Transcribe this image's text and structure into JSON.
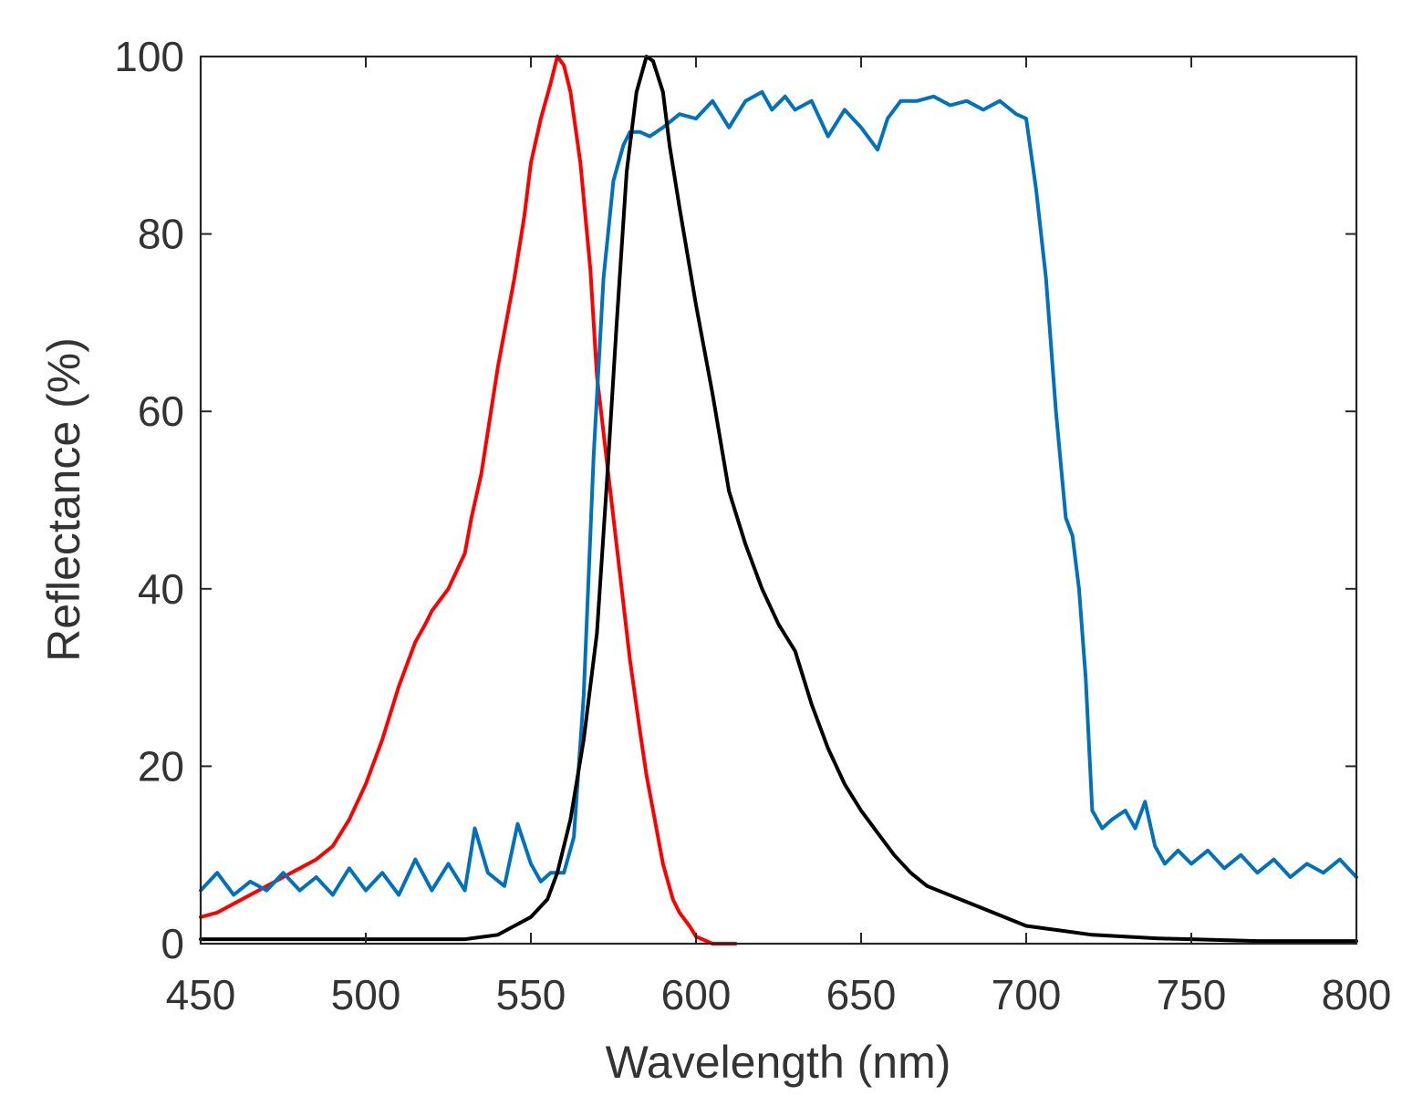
{
  "chart_data": {
    "type": "line",
    "title": "",
    "xlabel": "Wavelength (nm)",
    "ylabel": "Reflectance (%)",
    "xlim": [
      450,
      800
    ],
    "ylim": [
      0,
      100
    ],
    "xticks": [
      450,
      500,
      550,
      600,
      650,
      700,
      750,
      800
    ],
    "yticks": [
      0,
      20,
      40,
      60,
      80,
      100
    ],
    "grid": false,
    "legend": "none",
    "series": [
      {
        "color": "#ff0000",
        "x": [
          450,
          455,
          460,
          465,
          470,
          475,
          480,
          485,
          490,
          495,
          500,
          505,
          510,
          512,
          515,
          518,
          520,
          525,
          530,
          532,
          535,
          540,
          545,
          548,
          550,
          553,
          556,
          558,
          560,
          562,
          565,
          568,
          570,
          575,
          580,
          583,
          585,
          588,
          590,
          593,
          595,
          598,
          600,
          605,
          610,
          612
        ],
        "values": [
          3,
          3.5,
          4.5,
          5.5,
          6.5,
          7.5,
          8.5,
          9.5,
          11,
          14,
          18,
          23,
          29,
          31,
          34,
          36,
          37.5,
          40,
          44,
          48,
          53,
          65,
          75,
          82,
          88,
          93,
          97,
          100,
          99,
          96,
          88,
          76,
          64,
          48,
          32,
          24,
          19,
          13,
          9,
          5,
          3.5,
          2,
          0.8,
          0,
          0,
          0
        ]
      },
      {
        "color": "#0072bd",
        "x": [
          450,
          455,
          460,
          465,
          470,
          475,
          480,
          485,
          490,
          495,
          500,
          505,
          510,
          515,
          520,
          525,
          530,
          533,
          537,
          542,
          546,
          550,
          553,
          556,
          560,
          563,
          566,
          569,
          572,
          575,
          578,
          580,
          583,
          586,
          590,
          595,
          600,
          605,
          610,
          615,
          620,
          623,
          627,
          630,
          635,
          640,
          645,
          650,
          655,
          658,
          662,
          667,
          672,
          677,
          682,
          687,
          692,
          697,
          700,
          703,
          706,
          709,
          712,
          714,
          716,
          718,
          720,
          723,
          726,
          730,
          733,
          736,
          739,
          742,
          746,
          750,
          755,
          760,
          765,
          770,
          775,
          780,
          785,
          790,
          795,
          800
        ],
        "values": [
          6,
          8,
          5.5,
          7,
          6,
          8,
          6,
          7.5,
          5.5,
          8.5,
          6,
          8,
          5.5,
          9.5,
          6,
          9,
          6,
          13,
          8,
          6.5,
          13.5,
          9,
          7,
          8,
          8,
          12,
          28,
          55,
          75,
          86,
          90,
          91.5,
          91.5,
          91,
          92,
          93.5,
          93,
          95,
          92,
          95,
          96,
          94,
          95.5,
          94,
          95,
          91,
          94,
          92,
          89.5,
          93,
          95,
          95,
          95.5,
          94.5,
          95,
          94,
          95,
          93.5,
          93,
          85,
          75,
          60,
          48,
          46,
          40,
          30,
          15,
          13,
          14,
          15,
          13,
          16,
          11,
          9,
          10.5,
          9,
          10.5,
          8.5,
          10,
          8,
          9.5,
          7.5,
          9,
          8,
          9.5,
          7.5
        ]
      },
      {
        "color": "#000000",
        "x": [
          450,
          470,
          490,
          510,
          530,
          540,
          545,
          550,
          555,
          558,
          562,
          566,
          570,
          573,
          576,
          579,
          582,
          585,
          587,
          590,
          592,
          595,
          600,
          605,
          610,
          615,
          620,
          625,
          630,
          635,
          640,
          645,
          650,
          655,
          660,
          665,
          670,
          680,
          690,
          700,
          710,
          720,
          730,
          740,
          750,
          760,
          770,
          780,
          790,
          800
        ],
        "values": [
          0.5,
          0.5,
          0.5,
          0.5,
          0.5,
          1,
          2,
          3,
          5,
          8,
          14,
          23,
          35,
          52,
          70,
          87,
          96,
          100,
          99.5,
          96,
          90,
          83,
          72,
          62,
          51,
          45,
          40,
          36,
          33,
          27,
          22,
          18,
          15,
          12.5,
          10,
          8,
          6.5,
          5,
          3.5,
          2,
          1.5,
          1,
          0.8,
          0.6,
          0.5,
          0.4,
          0.3,
          0.3,
          0.3,
          0.3
        ]
      }
    ]
  }
}
